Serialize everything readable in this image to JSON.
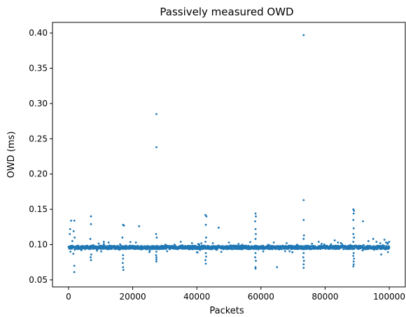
{
  "chart_data": {
    "type": "scatter",
    "title": "Passively measured OWD",
    "xlabel": "Packets",
    "ylabel": "OWD (ms)",
    "xlim": [
      -5000,
      105000
    ],
    "ylim": [
      0.04,
      0.415
    ],
    "xticks": [
      0,
      20000,
      40000,
      60000,
      80000,
      100000
    ],
    "yticks": [
      0.05,
      0.1,
      0.15,
      0.2,
      0.25,
      0.3,
      0.35,
      0.4
    ],
    "yticks_labels": [
      "0.05",
      "0.10",
      "0.15",
      "0.20",
      "0.25",
      "0.30",
      "0.35",
      "0.40"
    ],
    "grid": false,
    "series": [
      {
        "color": "#1f77b4",
        "band": {
          "x_from": 0,
          "x_to": 100000,
          "y_center": 0.096,
          "y_spread": 0.0025,
          "count": 1500
        },
        "points": [
          [
            800,
            0.134
          ],
          [
            1800,
            0.134
          ],
          [
            500,
            0.122
          ],
          [
            400,
            0.115
          ],
          [
            1600,
            0.119
          ],
          [
            1900,
            0.11
          ],
          [
            1200,
            0.105
          ],
          [
            1800,
            0.07
          ],
          [
            1800,
            0.061
          ],
          [
            600,
            0.09
          ],
          [
            1500,
            0.087
          ],
          [
            7000,
            0.14
          ],
          [
            7000,
            0.129
          ],
          [
            6800,
            0.108
          ],
          [
            6900,
            0.082
          ],
          [
            7000,
            0.078
          ],
          [
            7100,
            0.086
          ],
          [
            11000,
            0.104
          ],
          [
            12500,
            0.103
          ],
          [
            17000,
            0.128
          ],
          [
            17300,
            0.127
          ],
          [
            16800,
            0.11
          ],
          [
            17000,
            0.085
          ],
          [
            17000,
            0.08
          ],
          [
            16900,
            0.074
          ],
          [
            17000,
            0.068
          ],
          [
            17100,
            0.064
          ],
          [
            22000,
            0.126
          ],
          [
            21000,
            0.103
          ],
          [
            27400,
            0.285
          ],
          [
            27400,
            0.238
          ],
          [
            27300,
            0.115
          ],
          [
            27500,
            0.11
          ],
          [
            27400,
            0.09
          ],
          [
            27300,
            0.085
          ],
          [
            27400,
            0.082
          ],
          [
            27400,
            0.079
          ],
          [
            27400,
            0.076
          ],
          [
            35000,
            0.104
          ],
          [
            38500,
            0.102
          ],
          [
            42700,
            0.142
          ],
          [
            43000,
            0.14
          ],
          [
            42800,
            0.128
          ],
          [
            42900,
            0.11
          ],
          [
            42700,
            0.104
          ],
          [
            42800,
            0.088
          ],
          [
            42900,
            0.083
          ],
          [
            42700,
            0.078
          ],
          [
            42800,
            0.073
          ],
          [
            46800,
            0.124
          ],
          [
            45000,
            0.102
          ],
          [
            50000,
            0.103
          ],
          [
            53000,
            0.101
          ],
          [
            58300,
            0.144
          ],
          [
            58400,
            0.14
          ],
          [
            58200,
            0.133
          ],
          [
            58300,
            0.122
          ],
          [
            58400,
            0.115
          ],
          [
            58300,
            0.108
          ],
          [
            58300,
            0.088
          ],
          [
            58200,
            0.082
          ],
          [
            58400,
            0.077
          ],
          [
            58300,
            0.068
          ],
          [
            58300,
            0.066
          ],
          [
            65000,
            0.068
          ],
          [
            64000,
            0.103
          ],
          [
            68000,
            0.102
          ],
          [
            73300,
            0.397
          ],
          [
            73300,
            0.163
          ],
          [
            73300,
            0.135
          ],
          [
            73400,
            0.113
          ],
          [
            73300,
            0.108
          ],
          [
            73300,
            0.088
          ],
          [
            73200,
            0.082
          ],
          [
            73400,
            0.077
          ],
          [
            73300,
            0.072
          ],
          [
            73300,
            0.067
          ],
          [
            78000,
            0.104
          ],
          [
            83000,
            0.106
          ],
          [
            84000,
            0.103
          ],
          [
            88800,
            0.15
          ],
          [
            89000,
            0.148
          ],
          [
            88900,
            0.144
          ],
          [
            88800,
            0.135
          ],
          [
            88900,
            0.123
          ],
          [
            88800,
            0.115
          ],
          [
            89000,
            0.11
          ],
          [
            88800,
            0.104
          ],
          [
            88900,
            0.088
          ],
          [
            88800,
            0.084
          ],
          [
            89000,
            0.08
          ],
          [
            88900,
            0.076
          ],
          [
            88900,
            0.072
          ],
          [
            88800,
            0.069
          ],
          [
            91800,
            0.133
          ],
          [
            93500,
            0.105
          ],
          [
            95000,
            0.108
          ],
          [
            96000,
            0.104
          ],
          [
            97200,
            0.102
          ],
          [
            97500,
            0.086
          ],
          [
            98500,
            0.107
          ],
          [
            99000,
            0.103
          ],
          [
            99500,
            0.101
          ],
          [
            100000,
            0.104
          ]
        ]
      }
    ]
  }
}
